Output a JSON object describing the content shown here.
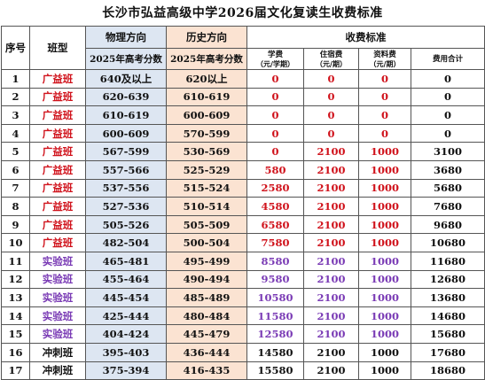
{
  "title": "长沙市弘益高级中学2026届文化复读生收费标准",
  "header": {
    "index": "序号",
    "class_type": "班型",
    "physics": "物理方向",
    "history": "历史方向",
    "fees": "收费标准",
    "physics_sub": "2025年高考分数",
    "history_sub": "2025年高考分数",
    "tuition": "学费",
    "tuition_unit": "（元/学期）",
    "accommodation": "住宿费",
    "accommodation_unit": "（元/期）",
    "materials": "资料费",
    "materials_unit": "（元/期）",
    "total": "费用合计"
  },
  "colors": {
    "guangyi": "#d0121b",
    "shiyan": "#7a3bb5",
    "chongci": "#111111",
    "physics_bg": "#dde6f2",
    "history_bg": "#fbe3d2"
  },
  "rows": [
    {
      "idx": "1",
      "cls": "广益班",
      "tone": "red",
      "phy": "640及以上",
      "his": "620以上",
      "tuition": "0",
      "acc": "0",
      "mat": "0",
      "total": "0"
    },
    {
      "idx": "2",
      "cls": "广益班",
      "tone": "red",
      "phy": "620-639",
      "his": "610-619",
      "tuition": "0",
      "acc": "0",
      "mat": "0",
      "total": "0"
    },
    {
      "idx": "3",
      "cls": "广益班",
      "tone": "red",
      "phy": "610-619",
      "his": "600-609",
      "tuition": "0",
      "acc": "0",
      "mat": "0",
      "total": "0"
    },
    {
      "idx": "4",
      "cls": "广益班",
      "tone": "red",
      "phy": "600-609",
      "his": "570-599",
      "tuition": "0",
      "acc": "0",
      "mat": "0",
      "total": "0"
    },
    {
      "idx": "5",
      "cls": "广益班",
      "tone": "red",
      "phy": "567-599",
      "his": "530-569",
      "tuition": "0",
      "acc": "2100",
      "mat": "1000",
      "total": "3100"
    },
    {
      "idx": "6",
      "cls": "广益班",
      "tone": "red",
      "phy": "557-566",
      "his": "525-529",
      "tuition": "580",
      "acc": "2100",
      "mat": "1000",
      "total": "3680"
    },
    {
      "idx": "7",
      "cls": "广益班",
      "tone": "red",
      "phy": "537-556",
      "his": "515-524",
      "tuition": "2580",
      "acc": "2100",
      "mat": "1000",
      "total": "5680"
    },
    {
      "idx": "8",
      "cls": "广益班",
      "tone": "red",
      "phy": "527-536",
      "his": "510-514",
      "tuition": "4580",
      "acc": "2100",
      "mat": "1000",
      "total": "7680"
    },
    {
      "idx": "9",
      "cls": "广益班",
      "tone": "red",
      "phy": "505-526",
      "his": "505-509",
      "tuition": "6580",
      "acc": "2100",
      "mat": "1000",
      "total": "9680"
    },
    {
      "idx": "10",
      "cls": "广益班",
      "tone": "red",
      "phy": "482-504",
      "his": "500-504",
      "tuition": "7580",
      "acc": "2100",
      "mat": "1000",
      "total": "10680"
    },
    {
      "idx": "11",
      "cls": "实验班",
      "tone": "purple",
      "phy": "465-481",
      "his": "495-499",
      "tuition": "8580",
      "acc": "2100",
      "mat": "1000",
      "total": "11680"
    },
    {
      "idx": "12",
      "cls": "实验班",
      "tone": "purple",
      "phy": "455-464",
      "his": "490-494",
      "tuition": "9580",
      "acc": "2100",
      "mat": "1000",
      "total": "12680"
    },
    {
      "idx": "13",
      "cls": "实验班",
      "tone": "purple",
      "phy": "445-454",
      "his": "485-489",
      "tuition": "10580",
      "acc": "2100",
      "mat": "1000",
      "total": "13680"
    },
    {
      "idx": "14",
      "cls": "实验班",
      "tone": "purple",
      "phy": "425-444",
      "his": "480-484",
      "tuition": "11580",
      "acc": "2100",
      "mat": "1000",
      "total": "14680"
    },
    {
      "idx": "15",
      "cls": "实验班",
      "tone": "purple",
      "phy": "404-424",
      "his": "445-479",
      "tuition": "12580",
      "acc": "2100",
      "mat": "1000",
      "total": "15680"
    },
    {
      "idx": "16",
      "cls": "冲刺班",
      "tone": "black",
      "phy": "395-403",
      "his": "436-444",
      "tuition": "14580",
      "acc": "2100",
      "mat": "1000",
      "total": "17680"
    },
    {
      "idx": "17",
      "cls": "冲刺班",
      "tone": "black",
      "phy": "375-394",
      "his": "416-435",
      "tuition": "15580",
      "acc": "2100",
      "mat": "1000",
      "total": "18680"
    }
  ]
}
